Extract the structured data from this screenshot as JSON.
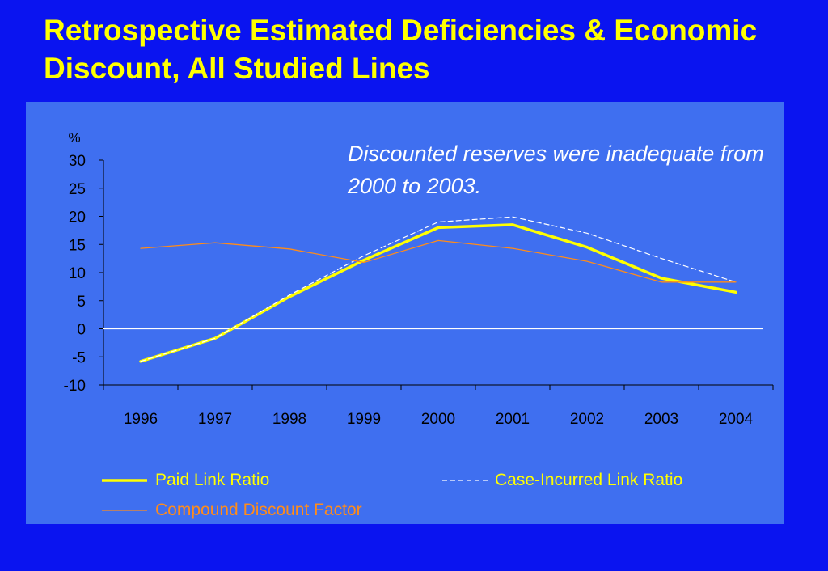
{
  "title": "Retrospective Estimated Deficiencies & Economic Discount, All Studied Lines",
  "colors": {
    "background": "#0a14f0",
    "panel": "#3f6ff0",
    "title": "#ffff00",
    "paid": "#ffff00",
    "case_incurred": "#ffffff",
    "discount": "#ff8c1a"
  },
  "chart_data": {
    "type": "line",
    "ylabel": "%",
    "ylim": [
      -10,
      30
    ],
    "yticks": [
      "30",
      "25",
      "20",
      "15",
      "10",
      "5",
      "0",
      "-5",
      "-10"
    ],
    "categories": [
      "1996",
      "1997",
      "1998",
      "1999",
      "2000",
      "2001",
      "2002",
      "2003",
      "2004"
    ],
    "annotation": "Discounted reserves were inadequate from 2000 to 2003.",
    "legend_position": "bottom",
    "series": [
      {
        "name": "Paid Link Ratio",
        "style": "solid-thick",
        "color": "#ffff00",
        "values": [
          -5.8,
          -1.7,
          5.7,
          12.2,
          18.0,
          18.5,
          14.5,
          9.0,
          6.5
        ]
      },
      {
        "name": "Case-Incurred Link Ratio",
        "style": "dashed",
        "color": "#ffffff",
        "values": [
          -5.8,
          -1.7,
          6.0,
          13.0,
          19.0,
          19.9,
          17.0,
          12.5,
          8.3
        ]
      },
      {
        "name": "Compound Discount Factor",
        "style": "solid-thin",
        "color": "#ff8c1a",
        "values": [
          14.3,
          15.3,
          14.2,
          11.8,
          15.7,
          14.3,
          12.0,
          8.3,
          8.3
        ]
      }
    ]
  }
}
